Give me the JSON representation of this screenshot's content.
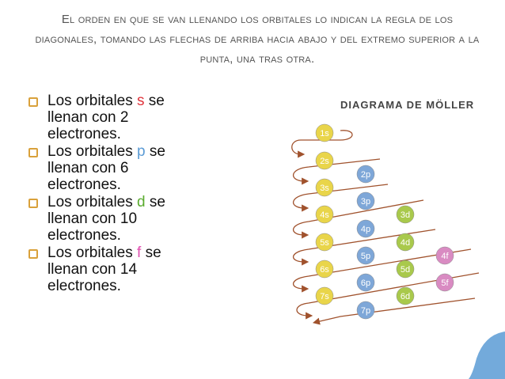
{
  "header": {
    "title": "El orden en que se van llenando los orbitales lo indican la regla de los diagonales, tomando las flechas de arriba hacia abajo y del extremo superior  a la punta, una tras otra."
  },
  "bullets": [
    {
      "prefix": "Los orbitales ",
      "letter": "s",
      "suffix": " se llenan con 2 electrones.",
      "color": "#e0343c"
    },
    {
      "prefix": "Los orbitales ",
      "letter": "p",
      "suffix": " se llenan con 6 electrones.",
      "color": "#5b9bd5"
    },
    {
      "prefix": "Los orbitales ",
      "letter": "d",
      "suffix": " se llenan con 10 electrones.",
      "color": "#5aab2e"
    },
    {
      "prefix": "Los orbitales ",
      "letter": "f",
      "suffix": " se llenan con 14 electrones.",
      "color": "#e04fb0"
    }
  ],
  "diagram": {
    "title": "DIAGRAMA DE MÖLLER",
    "orbitals": [
      "1s",
      "2s",
      "2p",
      "3s",
      "3p",
      "3d",
      "4s",
      "4p",
      "4d",
      "4f",
      "5s",
      "5p",
      "5d",
      "5f",
      "6s",
      "6p",
      "6d",
      "7s",
      "7p"
    ]
  }
}
